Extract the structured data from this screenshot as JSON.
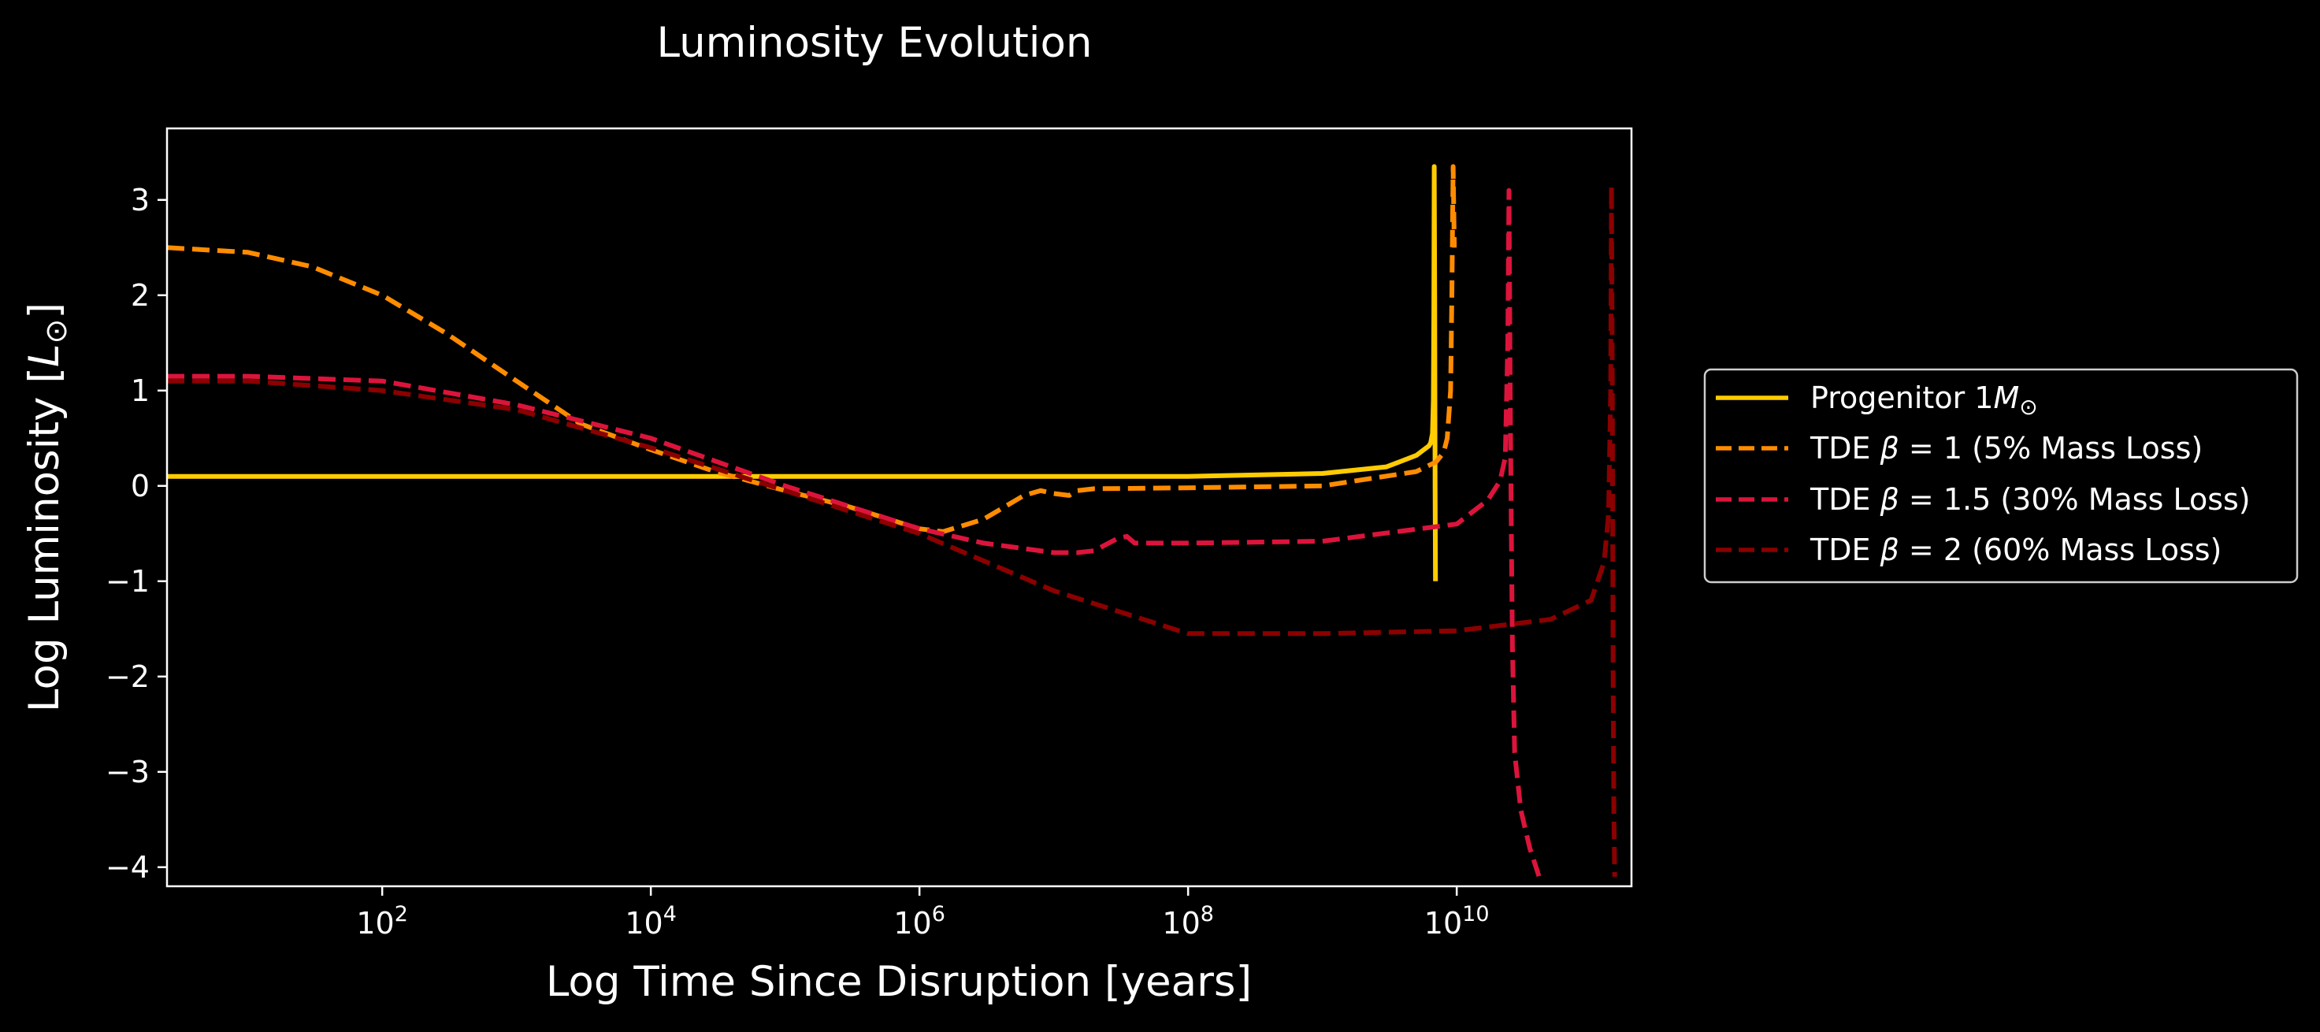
{
  "chart_data": {
    "type": "line",
    "title": "Luminosity Evolution",
    "xlabel": "Log Time Since Disruption [years]",
    "ylabel": "Log Luminosity [L⊙]",
    "x_scale": "log",
    "xlim": [
      2.5,
      200000000000.0
    ],
    "ylim": [
      -4.2,
      3.75
    ],
    "x_ticks": [
      {
        "value": 100,
        "base": "10",
        "exp": "2"
      },
      {
        "value": 10000,
        "base": "10",
        "exp": "4"
      },
      {
        "value": 1000000,
        "base": "10",
        "exp": "6"
      },
      {
        "value": 100000000,
        "base": "10",
        "exp": "8"
      },
      {
        "value": 10000000000,
        "base": "10",
        "exp": "10"
      }
    ],
    "y_ticks": [
      {
        "value": 3,
        "label": "3"
      },
      {
        "value": 2,
        "label": "2"
      },
      {
        "value": 1,
        "label": "1"
      },
      {
        "value": 0,
        "label": "0"
      },
      {
        "value": -1,
        "label": "−1"
      },
      {
        "value": -2,
        "label": "−2"
      },
      {
        "value": -3,
        "label": "−3"
      },
      {
        "value": -4,
        "label": "−4"
      }
    ],
    "grid": false,
    "legend_position": "right, outside plot",
    "series": [
      {
        "name": "Progenitor 1M⊙",
        "color": "#ffcc00",
        "dash": "solid",
        "x": [
          2.5,
          100,
          10000,
          1000000,
          100000000,
          1000000000,
          3000000000,
          5000000000,
          6200000000,
          6400000000,
          6600000000,
          6700000000,
          6750000000,
          6800000000,
          6850000000,
          6900000000,
          6950000000
        ],
        "y": [
          0.1,
          0.1,
          0.1,
          0.1,
          0.1,
          0.13,
          0.2,
          0.32,
          0.42,
          0.45,
          0.55,
          0.9,
          1.8,
          3.35,
          2.0,
          0.0,
          -1.0
        ]
      },
      {
        "name": "TDE β = 1 (5% Mass Loss)",
        "color": "#ff8c00",
        "dash": "dashed",
        "x": [
          2.5,
          10,
          30,
          100,
          300,
          1000,
          3000,
          10000,
          30000,
          100000,
          300000,
          1000000,
          1500000,
          3000000,
          6000000,
          8000000,
          10000000,
          13000000,
          15000000,
          20000000,
          100000000,
          1000000000,
          5000000000,
          7000000000,
          8000000000,
          8500000000,
          9000000000,
          9200000000,
          9400000000,
          9600000000
        ],
        "y": [
          2.5,
          2.45,
          2.3,
          2.0,
          1.6,
          1.1,
          0.65,
          0.38,
          0.15,
          -0.05,
          -0.22,
          -0.45,
          -0.48,
          -0.35,
          -0.1,
          -0.05,
          -0.08,
          -0.1,
          -0.05,
          -0.03,
          -0.02,
          0.0,
          0.15,
          0.25,
          0.35,
          0.5,
          1.0,
          2.0,
          3.35,
          2.5
        ]
      },
      {
        "name": "TDE β = 1.5 (30% Mass Loss)",
        "color": "#dc143c",
        "dash": "dashed",
        "x": [
          2.5,
          10,
          100,
          1000,
          10000,
          100000,
          1000000,
          3000000,
          10000000,
          15000000,
          20000000,
          30000000,
          35000000,
          40000000,
          50000000,
          100000000,
          1000000000,
          10000000000,
          17000000000,
          21000000000,
          23000000000,
          24000000000,
          24500000000,
          25000000000,
          25500000000,
          26000000000,
          27000000000,
          30000000000,
          35000000000,
          40000000000,
          42000000000
        ],
        "y": [
          1.15,
          1.15,
          1.1,
          0.85,
          0.5,
          0.0,
          -0.45,
          -0.6,
          -0.7,
          -0.7,
          -0.68,
          -0.55,
          -0.53,
          -0.6,
          -0.6,
          -0.6,
          -0.58,
          -0.4,
          -0.15,
          0.05,
          0.3,
          1.5,
          3.1,
          1.0,
          -0.5,
          -1.7,
          -2.8,
          -3.4,
          -3.8,
          -4.05,
          -4.15
        ]
      },
      {
        "name": "TDE β = 2 (60% Mass Loss)",
        "color": "#8b0000",
        "dash": "dashed",
        "x": [
          2.5,
          10,
          100,
          1000,
          10000,
          100000,
          1000000,
          10000000,
          100000000,
          1000000000,
          10000000000,
          50000000000,
          100000000000,
          125000000000,
          135000000000,
          140000000000,
          142000000000,
          144000000000,
          146000000000,
          148000000000,
          150000000000
        ],
        "y": [
          1.1,
          1.1,
          1.0,
          0.8,
          0.4,
          -0.05,
          -0.5,
          -1.1,
          -1.55,
          -1.55,
          -1.52,
          -1.4,
          -1.2,
          -0.8,
          -0.3,
          1.0,
          3.15,
          1.0,
          -2.0,
          -3.5,
          -4.1
        ]
      }
    ]
  }
}
